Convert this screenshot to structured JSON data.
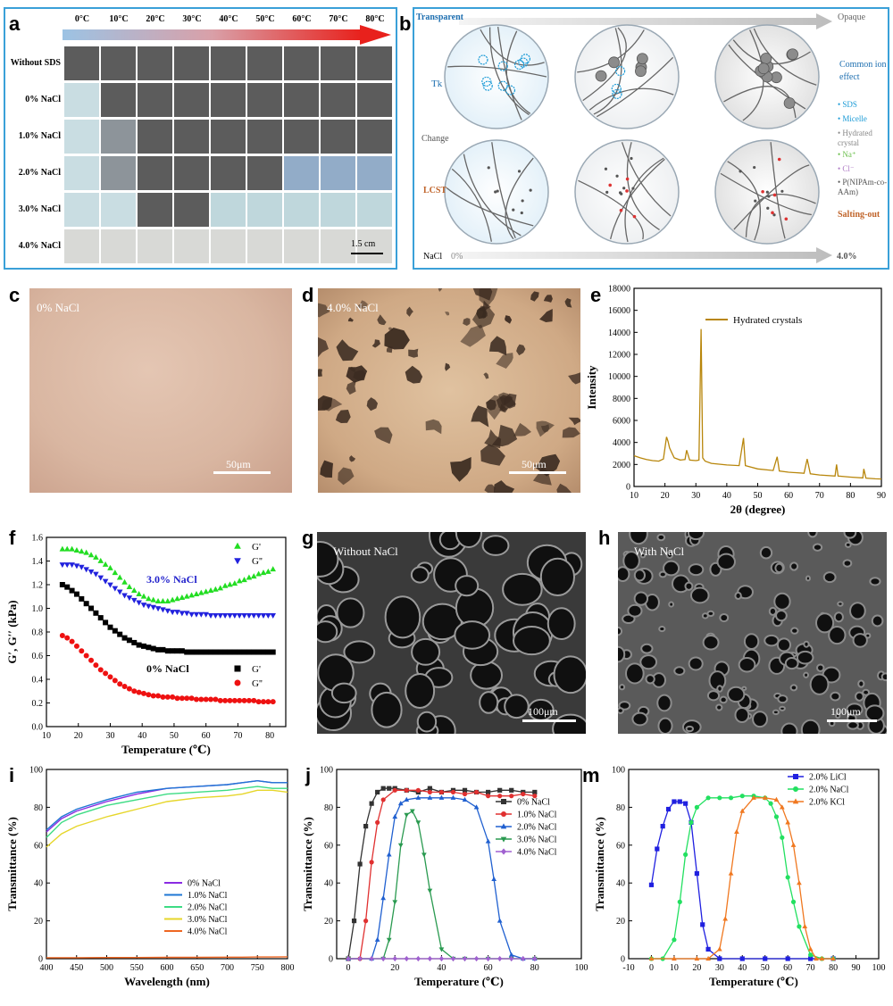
{
  "panel_letters": {
    "a": "a",
    "b": "b",
    "c": "c",
    "d": "d",
    "e": "e",
    "f": "f",
    "g": "g",
    "h": "h",
    "i": "i",
    "j": "j",
    "m": "m"
  },
  "panel_a": {
    "temperatures": [
      "0°C",
      "10°C",
      "20°C",
      "30°C",
      "40°C",
      "50°C",
      "60°C",
      "70°C",
      "80°C"
    ],
    "rows": [
      {
        "label": "Without SDS",
        "states": [
          "d",
          "d",
          "d",
          "d",
          "d",
          "d",
          "d",
          "d",
          "d"
        ]
      },
      {
        "label": "0% NaCl",
        "states": [
          "l",
          "d",
          "d",
          "d",
          "d",
          "d",
          "d",
          "d",
          "d"
        ]
      },
      {
        "label": "1.0% NaCl",
        "states": [
          "l",
          "m",
          "d",
          "d",
          "d",
          "d",
          "d",
          "d",
          "d"
        ]
      },
      {
        "label": "2.0% NaCl",
        "states": [
          "l",
          "m",
          "d",
          "d",
          "d",
          "d",
          "b",
          "b",
          "b"
        ]
      },
      {
        "label": "3.0% NaCl",
        "states": [
          "l",
          "l",
          "d",
          "d",
          "c",
          "c",
          "c",
          "c",
          "c"
        ]
      },
      {
        "label": "4.0% NaCl",
        "states": [
          "w",
          "w",
          "w",
          "w",
          "w",
          "w",
          "w",
          "w",
          "w"
        ]
      }
    ],
    "scale_label": "1.5 cm"
  },
  "panel_b": {
    "top_left": "Transparent",
    "top_right": "Opaque",
    "left_labels": [
      "Tk",
      "Change",
      "LCST"
    ],
    "right_top": "Common ion effect",
    "right_bottom": "Salting-out",
    "legend": [
      "SDS",
      "Micelle",
      "Hydrated crystal",
      "Na⁺",
      "Cl⁻",
      "P(NIPAm-co-AAm)"
    ],
    "bottom_left": "NaCl",
    "bottom_start": "0%",
    "bottom_end": "4.0%",
    "colors": {
      "sds": "#1a9ad6",
      "micelle": "#1a9ad6",
      "crystal": "#777777",
      "na": "#6abf4b",
      "cl": "#b07cc6",
      "arrow": "#c8c8c8",
      "label_blue": "#1e6fb0",
      "label_orange": "#c0642a"
    }
  },
  "panel_c": {
    "label": "0% NaCl",
    "scale": "50μm"
  },
  "panel_d": {
    "label": "4.0% NaCl",
    "scale": "50μm"
  },
  "panel_g": {
    "label": "Without NaCl",
    "scale": "100μm"
  },
  "panel_h": {
    "label": "With NaCl",
    "scale": "100μm"
  },
  "chart_data": [
    {
      "id": "e",
      "type": "line",
      "xlabel": "2θ (degree)",
      "ylabel": "Intensity",
      "xlim": [
        10,
        90
      ],
      "ylim": [
        0,
        18000
      ],
      "xticks": [
        "10",
        "20",
        "30",
        "40",
        "50",
        "60",
        "70",
        "80",
        "90"
      ],
      "yticks": [
        "0",
        "2000",
        "4000",
        "6000",
        "8000",
        "10000",
        "12000",
        "14000",
        "16000",
        "18000"
      ],
      "legend": [
        "Hydrated crystals"
      ],
      "color": "#b8860b",
      "x": [
        10,
        12,
        14,
        16,
        18,
        19.5,
        20.5,
        21,
        21.5,
        22,
        23,
        25,
        26.5,
        27,
        28,
        30,
        31,
        31.7,
        32.2,
        33,
        35,
        40,
        44,
        45.4,
        46,
        50,
        55,
        56.3,
        57,
        60,
        65,
        66,
        67,
        70,
        75,
        75.5,
        76,
        80,
        84,
        84.3,
        85,
        88,
        90
      ],
      "y": [
        2800,
        2600,
        2450,
        2350,
        2300,
        2500,
        4500,
        4100,
        3500,
        3200,
        2600,
        2400,
        2450,
        3300,
        2400,
        2350,
        2400,
        14300,
        2600,
        2300,
        2100,
        1950,
        1900,
        4400,
        1900,
        1600,
        1450,
        2700,
        1400,
        1300,
        1200,
        2500,
        1150,
        1050,
        950,
        2000,
        950,
        850,
        780,
        1600,
        760,
        700,
        680
      ]
    },
    {
      "id": "f",
      "type": "scatter",
      "xlabel": "Temperature (℃)",
      "ylabel": "G′, G′′ (kPa)",
      "xlim": [
        10,
        85
      ],
      "ylim": [
        0.0,
        1.6
      ],
      "xticks": [
        "10",
        "20",
        "30",
        "40",
        "50",
        "60",
        "70",
        "80"
      ],
      "yticks": [
        "0.0",
        "0.2",
        "0.4",
        "0.6",
        "0.8",
        "1.0",
        "1.2",
        "1.4",
        "1.6"
      ],
      "annotations": [
        "3.0% NaCl",
        "0% NaCl"
      ],
      "x": [
        15,
        16.5,
        18,
        19.5,
        21,
        22.5,
        24,
        25.5,
        27,
        28.5,
        30,
        31.5,
        33,
        34.5,
        36,
        37.5,
        39,
        40.5,
        42,
        43.5,
        45,
        46.5,
        48,
        49.5,
        51,
        52.5,
        54,
        55.5,
        57,
        58.5,
        60,
        61.5,
        63,
        64.5,
        66,
        67.5,
        69,
        70.5,
        72,
        73.5,
        75,
        76.5,
        78,
        79.5,
        81
      ],
      "series": [
        {
          "name": "G'",
          "group": "3.0% NaCl",
          "marker": "triangle-up",
          "color": "#22dd22",
          "values": [
            1.5,
            1.5,
            1.5,
            1.49,
            1.48,
            1.47,
            1.45,
            1.43,
            1.4,
            1.37,
            1.34,
            1.3,
            1.26,
            1.22,
            1.18,
            1.15,
            1.12,
            1.1,
            1.08,
            1.07,
            1.06,
            1.06,
            1.06,
            1.07,
            1.08,
            1.09,
            1.1,
            1.11,
            1.12,
            1.13,
            1.14,
            1.15,
            1.16,
            1.17,
            1.19,
            1.2,
            1.21,
            1.23,
            1.24,
            1.26,
            1.27,
            1.29,
            1.3,
            1.31,
            1.33
          ]
        },
        {
          "name": "G''",
          "group": "3.0% NaCl",
          "marker": "triangle-down",
          "color": "#2222dd",
          "values": [
            1.37,
            1.37,
            1.37,
            1.36,
            1.35,
            1.33,
            1.31,
            1.29,
            1.26,
            1.23,
            1.2,
            1.17,
            1.14,
            1.11,
            1.09,
            1.07,
            1.05,
            1.03,
            1.02,
            1.01,
            1.0,
            0.99,
            0.98,
            0.97,
            0.97,
            0.96,
            0.96,
            0.95,
            0.95,
            0.95,
            0.95,
            0.94,
            0.94,
            0.94,
            0.94,
            0.94,
            0.94,
            0.94,
            0.94,
            0.94,
            0.94,
            0.94,
            0.94,
            0.94,
            0.94
          ]
        },
        {
          "name": "G'",
          "group": "0% NaCl",
          "marker": "square",
          "color": "#000000",
          "values": [
            1.2,
            1.18,
            1.15,
            1.12,
            1.08,
            1.04,
            1.0,
            0.96,
            0.92,
            0.88,
            0.84,
            0.81,
            0.78,
            0.75,
            0.73,
            0.71,
            0.69,
            0.68,
            0.67,
            0.66,
            0.65,
            0.65,
            0.64,
            0.64,
            0.64,
            0.64,
            0.63,
            0.63,
            0.63,
            0.63,
            0.63,
            0.63,
            0.63,
            0.63,
            0.63,
            0.63,
            0.63,
            0.63,
            0.63,
            0.63,
            0.63,
            0.63,
            0.63,
            0.63,
            0.63
          ]
        },
        {
          "name": "G''",
          "group": "0% NaCl",
          "marker": "circle",
          "color": "#ee1111",
          "values": [
            0.77,
            0.75,
            0.72,
            0.68,
            0.64,
            0.6,
            0.56,
            0.52,
            0.48,
            0.45,
            0.42,
            0.39,
            0.36,
            0.34,
            0.32,
            0.3,
            0.29,
            0.28,
            0.27,
            0.26,
            0.26,
            0.25,
            0.25,
            0.25,
            0.24,
            0.24,
            0.24,
            0.24,
            0.23,
            0.23,
            0.23,
            0.23,
            0.23,
            0.22,
            0.22,
            0.22,
            0.22,
            0.22,
            0.22,
            0.22,
            0.22,
            0.21,
            0.21,
            0.21,
            0.21
          ]
        }
      ]
    },
    {
      "id": "i",
      "type": "line",
      "xlabel": "Wavelength (nm)",
      "ylabel": "Transmittance (%)",
      "xlim": [
        400,
        800
      ],
      "ylim": [
        0,
        100
      ],
      "xticks": [
        "400",
        "450",
        "500",
        "550",
        "600",
        "650",
        "700",
        "750",
        "800"
      ],
      "yticks": [
        "0",
        "20",
        "40",
        "60",
        "80",
        "100"
      ],
      "x": [
        400,
        425,
        450,
        500,
        550,
        600,
        650,
        700,
        725,
        750,
        775,
        800
      ],
      "series": [
        {
          "name": "0% NaCl",
          "color": "#8a2be2",
          "values": [
            67,
            74,
            78,
            83,
            87,
            90,
            91,
            92,
            93,
            94,
            93,
            93
          ]
        },
        {
          "name": "1.0% NaCl",
          "color": "#1f77d4",
          "values": [
            68,
            75,
            79,
            84,
            88,
            90,
            91,
            92,
            93,
            94,
            93,
            93
          ]
        },
        {
          "name": "2.0% NaCl",
          "color": "#3ddc84",
          "values": [
            64,
            72,
            76,
            81,
            84,
            87,
            88,
            89,
            90,
            91,
            90,
            90
          ]
        },
        {
          "name": "3.0% NaCl",
          "color": "#e6d62a",
          "values": [
            59,
            66,
            70,
            75,
            79,
            83,
            85,
            86,
            87,
            89,
            89,
            88
          ]
        },
        {
          "name": "4.0% NaCl",
          "color": "#ee6622",
          "values": [
            0.5,
            0.5,
            0.5,
            0.6,
            0.6,
            0.7,
            0.7,
            0.8,
            0.8,
            0.9,
            0.9,
            1.0
          ]
        }
      ]
    },
    {
      "id": "j",
      "type": "line",
      "xlabel": "Temperature (℃)",
      "ylabel": "Transmittance (%)",
      "xlim": [
        -5,
        100
      ],
      "ylim": [
        0,
        100
      ],
      "xticks": [
        "0",
        "20",
        "40",
        "60",
        "80",
        "100"
      ],
      "yticks": [
        "0",
        "20",
        "40",
        "60",
        "80",
        "100"
      ],
      "series": [
        {
          "name": "0% NaCl",
          "color": "#333333",
          "marker": "square",
          "x": [
            0,
            2.5,
            5,
            7.5,
            10,
            12.5,
            15,
            17.5,
            20,
            25,
            30,
            35,
            40,
            45,
            50,
            55,
            60,
            65,
            70,
            75,
            80
          ],
          "values": [
            0,
            20,
            50,
            70,
            82,
            88,
            90,
            90,
            90,
            89,
            88,
            90,
            88,
            89,
            89,
            88,
            88,
            89,
            89,
            88,
            88
          ]
        },
        {
          "name": "1.0% NaCl",
          "color": "#e03030",
          "marker": "circle",
          "x": [
            0,
            5,
            7.5,
            10,
            12.5,
            15,
            20,
            25,
            30,
            35,
            40,
            45,
            50,
            55,
            60,
            65,
            70,
            75,
            80
          ],
          "values": [
            0,
            0,
            20,
            51,
            72,
            84,
            89,
            89,
            89,
            88,
            88,
            88,
            87,
            88,
            86,
            86,
            86,
            87,
            86
          ]
        },
        {
          "name": "2.0% NaCl",
          "color": "#2060d0",
          "marker": "triangle-up",
          "x": [
            0,
            10,
            12.5,
            15,
            17.5,
            20,
            22.5,
            25,
            30,
            35,
            40,
            45,
            50,
            55,
            60,
            62.5,
            65,
            70,
            75,
            80
          ],
          "values": [
            0,
            0,
            10,
            32,
            55,
            75,
            82,
            84,
            85,
            85,
            85,
            85,
            84,
            80,
            62,
            42,
            20,
            2,
            0,
            0
          ]
        },
        {
          "name": "3.0% NaCl",
          "color": "#2a9a50",
          "marker": "triangle-down",
          "x": [
            0,
            15,
            17.5,
            20,
            22.5,
            25,
            27.5,
            30,
            32.5,
            35,
            40,
            45,
            50,
            60,
            70,
            80
          ],
          "values": [
            0,
            0,
            10,
            30,
            60,
            76,
            78,
            72,
            55,
            36,
            5,
            0,
            0,
            0,
            0,
            0
          ]
        },
        {
          "name": "4.0% NaCl",
          "color": "#a060d0",
          "marker": "diamond",
          "x": [
            0,
            5,
            10,
            15,
            20,
            25,
            30,
            35,
            40,
            45,
            50,
            55,
            60,
            65,
            70,
            75,
            80
          ],
          "values": [
            0,
            0,
            0,
            0,
            0,
            0,
            0,
            0,
            0,
            0,
            0,
            0,
            0,
            0,
            0,
            0,
            0
          ]
        }
      ]
    },
    {
      "id": "m",
      "type": "line",
      "xlabel": "Temperature (℃)",
      "ylabel": "Transmittance (%)",
      "xlim": [
        -10,
        100
      ],
      "ylim": [
        0,
        100
      ],
      "xticks": [
        "-10",
        "0",
        "10",
        "20",
        "30",
        "40",
        "50",
        "60",
        "70",
        "80",
        "90",
        "100"
      ],
      "yticks": [
        "0",
        "20",
        "40",
        "60",
        "80",
        "100"
      ],
      "series": [
        {
          "name": "2.0% LiCl",
          "color": "#2020e0",
          "marker": "square",
          "x": [
            0,
            2.5,
            5,
            7.5,
            10,
            12.5,
            15,
            17.5,
            20,
            22.5,
            25,
            30,
            40,
            50,
            60,
            70,
            80
          ],
          "values": [
            39,
            58,
            70,
            79,
            83,
            83,
            82,
            72,
            45,
            18,
            5,
            0,
            0,
            0,
            0,
            0,
            0
          ]
        },
        {
          "name": "2.0% NaCl",
          "color": "#22e060",
          "marker": "circle",
          "x": [
            0,
            5,
            10,
            12.5,
            15,
            17.5,
            20,
            25,
            30,
            35,
            40,
            45,
            50,
            52.5,
            55,
            57.5,
            60,
            62.5,
            65,
            70,
            75,
            80
          ],
          "values": [
            0,
            0,
            10,
            30,
            55,
            72,
            80,
            85,
            85,
            85,
            86,
            86,
            85,
            82,
            75,
            64,
            43,
            30,
            17,
            2,
            0,
            0
          ]
        },
        {
          "name": "2.0% KCl",
          "color": "#f07820",
          "marker": "triangle-up",
          "x": [
            0,
            10,
            20,
            25,
            30,
            32.5,
            35,
            37.5,
            40,
            45,
            50,
            55,
            57.5,
            60,
            62.5,
            65,
            67.5,
            70,
            72.5,
            75,
            80
          ],
          "values": [
            0,
            0,
            0,
            0,
            5,
            21,
            45,
            67,
            78,
            85,
            85,
            84,
            80,
            72,
            60,
            40,
            17,
            5,
            0,
            0,
            0
          ]
        }
      ]
    }
  ]
}
